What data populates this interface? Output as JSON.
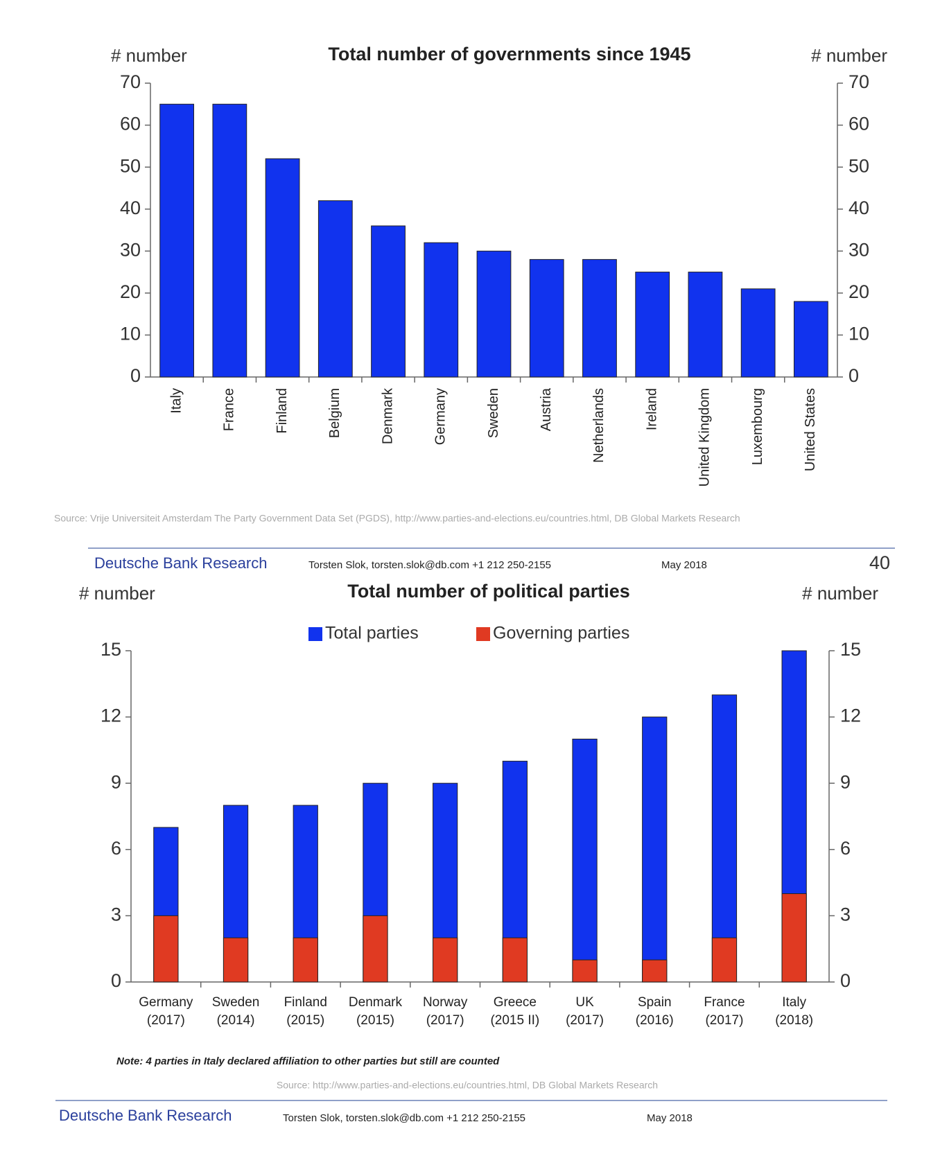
{
  "chart_data": [
    {
      "type": "bar",
      "title": "Total number of governments since 1945",
      "ylabel": "# number",
      "y2label": "# number",
      "categories": [
        "Italy",
        "France",
        "Finland",
        "Belgium",
        "Denmark",
        "Germany",
        "Sweden",
        "Austria",
        "Netherlands",
        "Ireland",
        "United Kingdom",
        "Luxembourg",
        "United States"
      ],
      "values": [
        65,
        65,
        52,
        42,
        36,
        32,
        30,
        28,
        28,
        25,
        25,
        21,
        18
      ],
      "color": "#1133ee",
      "ylim": [
        0,
        70
      ],
      "yticks": [
        0,
        10,
        20,
        30,
        40,
        50,
        60,
        70
      ],
      "y2lim": [
        0,
        70
      ],
      "y2ticks": [
        0,
        10,
        20,
        30,
        40,
        50,
        60,
        70
      ],
      "source": "Source: Vrije Universiteit Amsterdam The Party Government Data Set (PGDS), http://www.parties-and-elections.eu/countries.html, DB Global Markets Research",
      "footer": {
        "brand": "Deutsche Bank Research",
        "author": "Torsten Slok, torsten.slok@db.com +1 212 250-2155",
        "date": "May 2018",
        "page": "40"
      }
    },
    {
      "type": "overlap_bar",
      "title": "Total number of political parties",
      "ylabel": "# number",
      "y2label": "# number",
      "categories": [
        [
          "Germany",
          "(2017)"
        ],
        [
          "Sweden",
          "(2014)"
        ],
        [
          "Finland",
          "(2015)"
        ],
        [
          "Denmark",
          "(2015)"
        ],
        [
          "Norway",
          "(2017)"
        ],
        [
          "Greece",
          "(2015 II)"
        ],
        [
          "UK",
          "(2017)"
        ],
        [
          "Spain",
          "(2016)"
        ],
        [
          "France",
          "(2017)"
        ],
        [
          "Italy",
          "(2018)"
        ]
      ],
      "series": [
        {
          "name": "Total parties",
          "color": "#1133ee",
          "values": [
            7,
            8,
            8,
            9,
            9,
            10,
            11,
            12,
            13,
            15
          ]
        },
        {
          "name": "Governing parties",
          "color": "#e03a22",
          "values": [
            3,
            2,
            2,
            3,
            2,
            2,
            1,
            1,
            2,
            4
          ]
        }
      ],
      "legend": "top",
      "ylim": [
        0,
        15
      ],
      "yticks": [
        0,
        3,
        6,
        9,
        12,
        15
      ],
      "y2lim": [
        0,
        15
      ],
      "y2ticks": [
        0,
        3,
        6,
        9,
        12,
        15
      ],
      "note": "Note: 4 parties in Italy declared affiliation to other parties but still are counted",
      "source": "Source: http://www.parties-and-elections.eu/countries.html, DB Global Markets Research",
      "footer": {
        "brand": "Deutsche Bank Research",
        "author": "Torsten Slok, torsten.slok@db.com +1 212 250-2155",
        "date": "May 2018"
      }
    }
  ]
}
